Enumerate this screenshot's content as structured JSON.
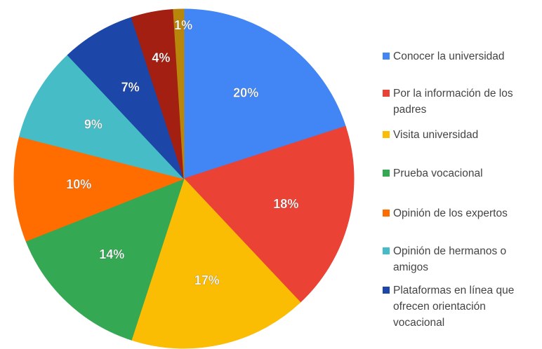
{
  "chart_data": {
    "type": "pie",
    "categories": [
      "Conocer la universidad",
      "Por la información de los padres",
      "Visita universidad",
      "Prueba vocacional",
      "Opinión de los expertos",
      "Opinión de hermanos o amigos",
      "Plataformas en línea que ofrecen orientación vocacional",
      null,
      null
    ],
    "values": [
      20,
      18,
      17,
      14,
      10,
      9,
      7,
      4,
      1
    ],
    "value_labels": [
      "20%",
      "18%",
      "17%",
      "14%",
      "10%",
      "9%",
      "7%",
      "4%",
      "1%"
    ],
    "colors": [
      "#4285f4",
      "#ea4335",
      "#fbbc04",
      "#34a853",
      "#ff6d01",
      "#46bdc6",
      "#1c46a8",
      "#a31f12",
      "#b8860b"
    ],
    "legend": "right"
  }
}
